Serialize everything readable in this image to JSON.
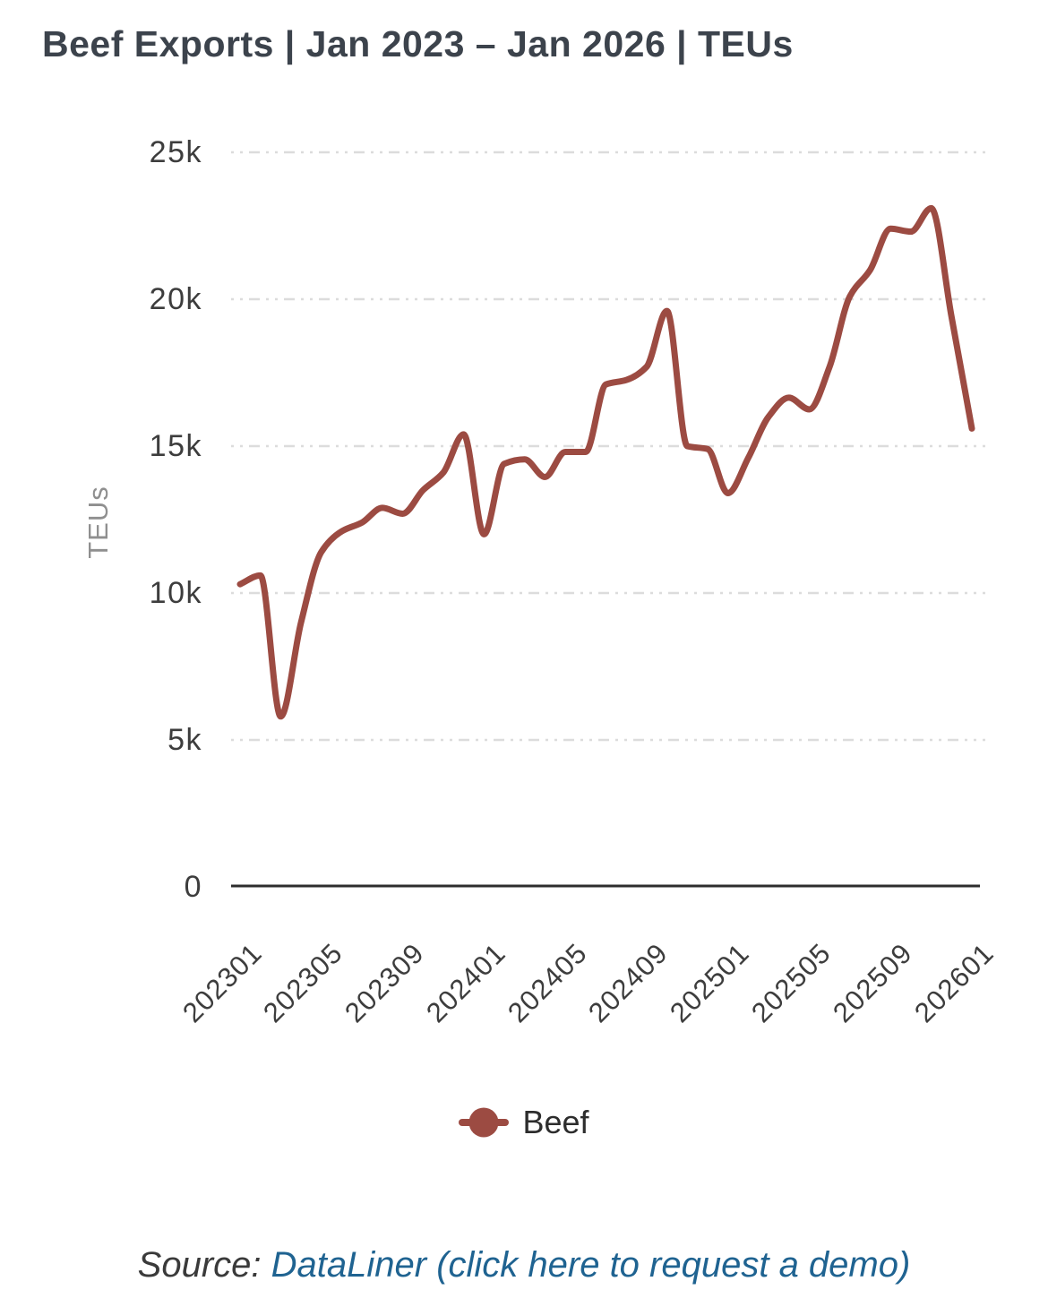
{
  "legend": {
    "label": "Beef"
  },
  "source": {
    "prefix": "Source: ",
    "link_text": "DataLiner (click here to request a demo)"
  },
  "colors": {
    "line": "#9c4b42",
    "link": "#1f6391",
    "grid": "#dcdcdc",
    "axis": "#2d2d2d",
    "title_text": "#3c434c",
    "tick_text": "#3d3d3d"
  },
  "chart_data": {
    "type": "line",
    "title": "Beef Exports | Jan 2023 – Jan 2026 | TEUs",
    "xlabel": "",
    "ylabel": "TEUs",
    "ylim": [
      0,
      25000
    ],
    "grid": "horizontal-dashed",
    "legend_position": "bottom-center",
    "x": [
      "202301",
      "202302",
      "202303",
      "202304",
      "202305",
      "202306",
      "202307",
      "202308",
      "202309",
      "202310",
      "202311",
      "202312",
      "202401",
      "202402",
      "202403",
      "202404",
      "202405",
      "202406",
      "202407",
      "202408",
      "202409",
      "202410",
      "202411",
      "202412",
      "202501",
      "202502",
      "202503",
      "202504",
      "202505",
      "202506",
      "202507",
      "202508",
      "202509",
      "202510",
      "202511",
      "202512",
      "202601"
    ],
    "x_tick_labels": [
      "202301",
      "202305",
      "202309",
      "202401",
      "202405",
      "202409",
      "202501",
      "202505",
      "202509",
      "202601"
    ],
    "y_ticks": [
      {
        "label": "25k",
        "value": 25000
      },
      {
        "label": "20k",
        "value": 20000
      },
      {
        "label": "15k",
        "value": 15000
      },
      {
        "label": "10k",
        "value": 10000
      },
      {
        "label": "5k",
        "value": 5000
      },
      {
        "label": "0",
        "value": 0
      }
    ],
    "series": [
      {
        "name": "Beef",
        "color": "#9c4b42",
        "values": [
          10300,
          10600,
          5800,
          9000,
          11400,
          12100,
          12400,
          12900,
          12700,
          13500,
          14100,
          15400,
          12000,
          14400,
          14550,
          13950,
          14800,
          14800,
          17100,
          17250,
          17700,
          19600,
          15000,
          14900,
          13400,
          14600,
          16000,
          16650,
          16250,
          17700,
          20100,
          21000,
          22400,
          22300,
          23100,
          19400,
          15600
        ]
      }
    ]
  }
}
